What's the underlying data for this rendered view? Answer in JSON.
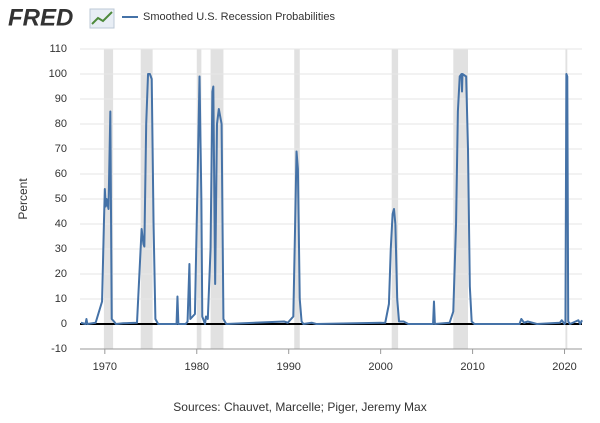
{
  "brand": "FRED",
  "chart_data": {
    "type": "line",
    "y_label": "Percent",
    "source": "Sources: Chauvet, Marcelle; Piger, Jeremy Max",
    "x": [
      1967.4,
      1967.9,
      1968.0,
      1968.1,
      1969.0,
      1969.7,
      1969.9,
      1970.0,
      1970.1,
      1970.2,
      1970.4,
      1970.6,
      1970.75,
      1971.0,
      1971.2,
      1972.0,
      1973.5,
      1974.0,
      1974.2,
      1974.3,
      1974.5,
      1974.7,
      1974.9,
      1975.1,
      1975.3,
      1975.5,
      1975.8,
      1977.0,
      1977.8,
      1977.9,
      1978.0,
      1978.8,
      1979.0,
      1979.2,
      1979.3,
      1979.8,
      1980.1,
      1980.3,
      1980.5,
      1980.6,
      1980.9,
      1981.0,
      1981.2,
      1981.5,
      1981.7,
      1981.8,
      1982.0,
      1982.2,
      1982.4,
      1982.7,
      1982.9,
      1983.2,
      1989.5,
      1989.9,
      1990.5,
      1990.7,
      1990.85,
      1991.0,
      1991.2,
      1991.4,
      1991.6,
      1992.5,
      1993.0,
      2000.5,
      2000.9,
      2001.1,
      2001.3,
      2001.45,
      2001.6,
      2001.8,
      2002.0,
      2002.5,
      2003.0,
      2005.7,
      2005.8,
      2005.9,
      2007.5,
      2007.9,
      2008.2,
      2008.4,
      2008.6,
      2008.8,
      2008.85,
      2008.9,
      2009.3,
      2009.5,
      2009.7,
      2009.9,
      2010.2,
      2015.1,
      2015.3,
      2015.6,
      2016.0,
      2017.0,
      2019.5,
      2019.7,
      2020.0,
      2020.1,
      2020.2,
      2020.3,
      2020.4,
      2020.6,
      2021.5,
      2021.7,
      2021.9
    ],
    "series": [
      {
        "name": "Smoothed U.S. Recession Probabilities",
        "color": "#4572a7",
        "values": [
          0.5,
          0,
          2,
          0,
          0.5,
          9,
          40,
          54,
          47,
          50,
          46,
          85,
          2,
          1,
          0,
          0.3,
          0.5,
          38,
          32,
          31,
          80,
          100,
          100,
          98,
          40,
          2,
          0,
          0,
          0,
          11,
          0,
          0,
          1,
          24,
          2,
          4,
          60,
          99,
          50,
          3,
          0,
          3,
          2,
          30,
          93,
          95,
          16,
          80,
          86,
          80,
          2,
          0,
          1,
          0.5,
          3,
          40,
          69,
          62,
          10,
          1,
          0,
          0.5,
          0,
          0.5,
          8,
          30,
          44,
          46,
          40,
          10,
          1,
          1,
          0,
          0,
          9,
          0,
          0.5,
          5,
          40,
          85,
          99,
          100,
          93,
          100,
          99,
          70,
          15,
          1,
          0,
          0,
          2,
          0.5,
          1,
          0,
          0.5,
          1.5,
          0,
          0.5,
          100,
          99,
          1,
          0,
          1.5,
          0,
          1.5
        ]
      }
    ],
    "recessions": [
      [
        1969.9,
        1970.9
      ],
      [
        1973.9,
        1975.2
      ],
      [
        1980.0,
        1980.5
      ],
      [
        1981.5,
        1982.9
      ],
      [
        1990.6,
        1991.2
      ],
      [
        2001.2,
        2001.9
      ],
      [
        2007.9,
        2009.5
      ],
      [
        2020.1,
        2020.3
      ]
    ],
    "recession_color": "#e1e1e1",
    "xlim": [
      1967.3,
      2021.9
    ],
    "xticks": [
      1970,
      1980,
      1990,
      2000,
      2010,
      2020
    ],
    "ylim": [
      -10,
      110
    ],
    "yticks": [
      -10,
      0,
      10,
      20,
      30,
      40,
      50,
      60,
      70,
      80,
      90,
      100,
      110
    ],
    "grid": true
  }
}
